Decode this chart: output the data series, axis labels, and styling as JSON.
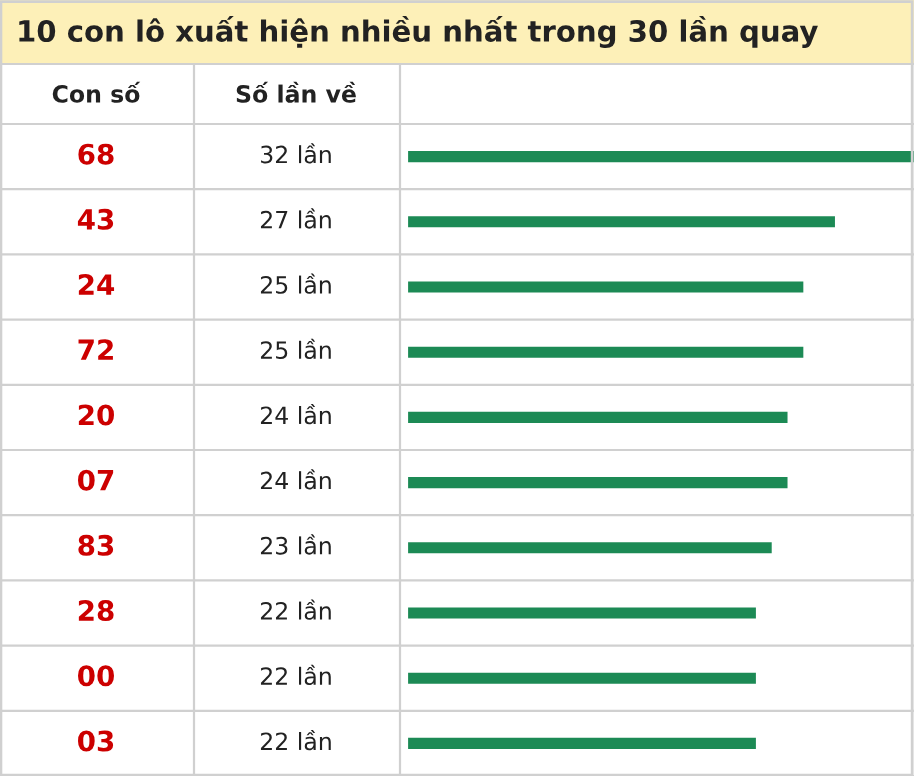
{
  "chart_data": {
    "type": "bar",
    "orientation": "horizontal",
    "title": "10 con lô xuất hiện nhiều nhất trong 30 lần quay",
    "ylabel": "Con số",
    "annotations": [
      "Số lần về"
    ],
    "categories": [
      "68",
      "43",
      "24",
      "72",
      "20",
      "07",
      "83",
      "28",
      "00",
      "03"
    ],
    "values": [
      32,
      27,
      25,
      25,
      24,
      24,
      23,
      22,
      22,
      22
    ],
    "value_labels": [
      "32 lần",
      "27 lần",
      "25 lần",
      "25 lần",
      "24 lần",
      "24 lần",
      "23 lần",
      "22 lần",
      "22 lần",
      "22 lần"
    ],
    "color": "#1c8a55"
  }
}
